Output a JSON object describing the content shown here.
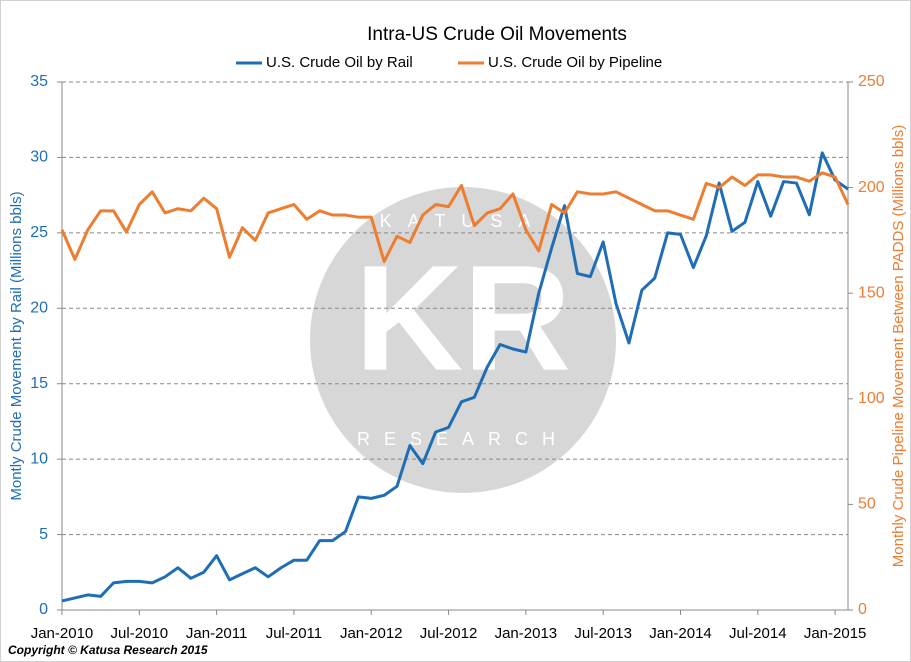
{
  "chart_data": {
    "type": "line",
    "title": "Intra-US Crude Oil Movements",
    "ylabel": "Montly Crude Movement by Rail (Millions bbls)",
    "y2label": "Monthly Crude Pipeline Movement Between PADDS (Millions bbls)",
    "categories": [
      "Jan-2010",
      null,
      null,
      null,
      null,
      null,
      "Jul-2010",
      null,
      null,
      null,
      null,
      null,
      "Jan-2011",
      null,
      null,
      null,
      null,
      null,
      "Jul-2011",
      null,
      null,
      null,
      null,
      null,
      "Jan-2012",
      null,
      null,
      null,
      null,
      null,
      "Jul-2012",
      null,
      null,
      null,
      null,
      null,
      "Jan-2013",
      null,
      null,
      null,
      null,
      null,
      "Jul-2013",
      null,
      null,
      null,
      null,
      null,
      "Jan-2014",
      null,
      null,
      null,
      null,
      null,
      "Jul-2014",
      null,
      null,
      null,
      null,
      null,
      "Jan-2015",
      null
    ],
    "series": [
      {
        "name": "U.S. Crude Oil by Rail",
        "color": "#1f6eb5",
        "axis": "y",
        "values": [
          0.6,
          0.8,
          1.0,
          0.9,
          1.8,
          1.9,
          1.9,
          1.8,
          2.2,
          2.8,
          2.1,
          2.5,
          3.6,
          2.0,
          2.4,
          2.8,
          2.2,
          2.8,
          3.3,
          3.3,
          4.6,
          4.6,
          5.2,
          7.5,
          7.4,
          7.6,
          8.2,
          10.9,
          9.7,
          11.8,
          12.1,
          13.8,
          14.1,
          16.1,
          17.6,
          17.3,
          17.1,
          21.0,
          24.0,
          26.8,
          22.3,
          22.1,
          24.4,
          20.3,
          17.7,
          21.2,
          22.0,
          25.0,
          24.9,
          22.7,
          24.8,
          28.3,
          25.1,
          25.7,
          28.4,
          26.1,
          28.4,
          28.3,
          26.2,
          30.3,
          28.5,
          27.9
        ]
      },
      {
        "name": "U.S. Crude Oil by Pipeline",
        "color": "#ed7d31",
        "axis": "y2",
        "values": [
          180,
          166,
          180,
          189,
          189,
          179,
          192,
          198,
          188,
          190,
          189,
          195,
          190,
          167,
          181,
          175,
          188,
          190,
          192,
          185,
          189,
          187,
          187,
          186,
          186,
          165,
          177,
          174,
          187,
          192,
          191,
          201,
          182,
          188,
          190,
          197,
          180,
          170,
          192,
          188,
          198,
          197,
          197,
          198,
          195,
          192,
          189,
          189,
          187,
          185,
          202,
          200,
          205,
          201,
          206,
          206,
          205,
          205,
          203,
          207,
          205,
          192
        ]
      }
    ],
    "ylim": [
      0,
      35
    ],
    "yticks": [
      0,
      5,
      10,
      15,
      20,
      25,
      30,
      35
    ],
    "y2lim": [
      0,
      250
    ],
    "y2ticks": [
      0,
      50,
      100,
      150,
      200,
      250
    ],
    "grid": true,
    "legend": "top",
    "watermark": {
      "initials": "KR",
      "top": "KATUSA",
      "bottom": "RESEARCH"
    },
    "footer": "Copyright © Katusa Research 2015"
  }
}
